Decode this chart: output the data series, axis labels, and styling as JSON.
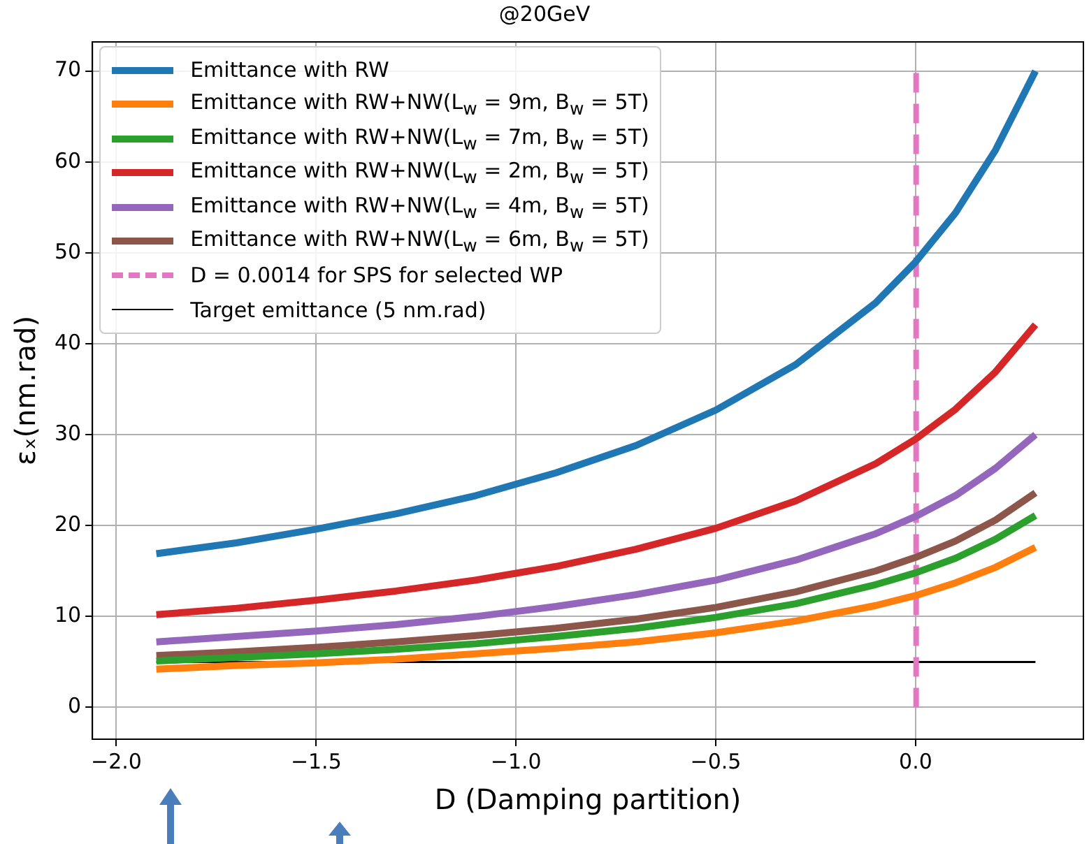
{
  "chart_data": {
    "type": "line",
    "title": "@20GeV",
    "xlabel": "D (Damping partition)",
    "ylabel": "εₓ(nm.rad)",
    "x": [
      -1.9,
      -1.7,
      -1.5,
      -1.3,
      -1.1,
      -0.9,
      -0.7,
      -0.5,
      -0.3,
      -0.1,
      0,
      0.1,
      0.2,
      0.3
    ],
    "series": [
      {
        "name": "Emittance with RW",
        "color": "#1f77b4",
        "values": [
          16.9,
          18.1,
          19.6,
          21.3,
          23.3,
          25.8,
          28.8,
          32.7,
          37.7,
          44.5,
          49,
          54.4,
          61.3,
          70
        ]
      },
      {
        "name": "Emittance with RW+NW(L$_{w}$ = 9m, B$_{w}$ = 5T)",
        "color": "#ff7f0e",
        "values": [
          4.2,
          4.6,
          4.9,
          5.3,
          5.9,
          6.5,
          7.2,
          8.2,
          9.5,
          11.2,
          12.3,
          13.7,
          15.4,
          17.6
        ]
      },
      {
        "name": "Emittance with RW+NW(L$_{w}$ = 7m, B$_{w}$ = 5T)",
        "color": "#2ca02c",
        "values": [
          5.1,
          5.5,
          5.9,
          6.4,
          7.0,
          7.8,
          8.7,
          9.9,
          11.4,
          13.5,
          14.8,
          16.4,
          18.5,
          21.1
        ]
      },
      {
        "name": "Emittance with RW+NW(L$_{w}$ = 2m, B$_{w}$ = 5T)",
        "color": "#d62728",
        "values": [
          10.2,
          10.9,
          11.8,
          12.8,
          14.0,
          15.5,
          17.4,
          19.7,
          22.7,
          26.8,
          29.5,
          32.8,
          36.9,
          42.1
        ]
      },
      {
        "name": "Emittance with RW+NW(L$_{w}$ = 4m, B$_{w}$ = 5T)",
        "color": "#9467bd",
        "values": [
          7.2,
          7.8,
          8.4,
          9.1,
          10.0,
          11.1,
          12.4,
          14.0,
          16.2,
          19.1,
          21,
          23.3,
          26.3,
          30
        ]
      },
      {
        "name": "Emittance with RW+NW(L$_{w}$ = 6m, B$_{w}$ = 5T)",
        "color": "#8c564b",
        "values": [
          5.7,
          6.1,
          6.6,
          7.2,
          7.9,
          8.7,
          9.7,
          11.0,
          12.7,
          15.0,
          16.5,
          18.3,
          20.6,
          23.6
        ]
      },
      {
        "name": "D = 0.0014 for SPS for selected WP",
        "color": "#e377c2",
        "x": [
          0.0014,
          0.0014
        ],
        "values": [
          0,
          70
        ],
        "line_style": "dashed"
      },
      {
        "name": "Target emittance (5 nm.rad)",
        "color": "#000000",
        "x": [
          -1.9,
          0.3
        ],
        "values": [
          5,
          5
        ]
      }
    ],
    "xlim": [
      -2.06,
      0.42
    ],
    "xticks": [
      {
        "value": -2,
        "label": "−2.0"
      },
      {
        "value": -1.5,
        "label": "−1.5"
      },
      {
        "value": -1,
        "label": "−1.0"
      },
      {
        "value": -0.5,
        "label": "−0.5"
      },
      {
        "value": 0,
        "label": "0.0"
      }
    ],
    "ylim": [
      -3.5,
      73.2
    ],
    "yticks": [
      0,
      10,
      20,
      30,
      40,
      50,
      60,
      70
    ],
    "grid": true,
    "legend": "top left",
    "marker": "none",
    "line_style": "solid"
  }
}
